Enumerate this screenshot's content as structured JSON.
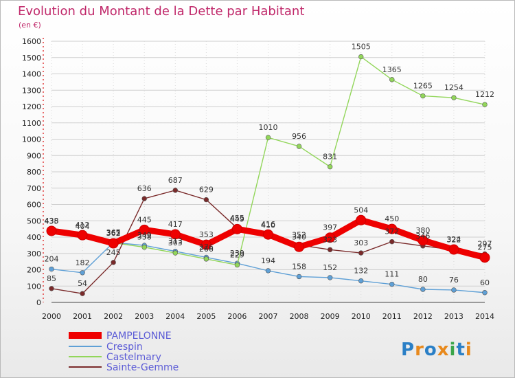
{
  "chart_data": {
    "type": "line",
    "title": "Evolution du Montant de la Dette par Habitant",
    "subtitle": "(en €)",
    "xlabel": "",
    "ylabel": "",
    "x": [
      "2000",
      "2001",
      "2002",
      "2003",
      "2004",
      "2005",
      "2006",
      "2007",
      "2008",
      "2009",
      "2010",
      "2011",
      "2012",
      "2013",
      "2014"
    ],
    "ylim": [
      0,
      1600
    ],
    "yticks": [
      "0",
      "100",
      "200",
      "300",
      "400",
      "500",
      "600",
      "700",
      "800",
      "900",
      "1000",
      "1100",
      "1200",
      "1300",
      "1400",
      "1500",
      "1600"
    ],
    "grid": true,
    "legend_position": "bottom-left",
    "series": [
      {
        "name": "PAMPELONNE",
        "color": "#ee0000",
        "values": [
          438,
          412,
          362,
          445,
          417,
          353,
          449,
          416,
          340,
          397,
          504,
          450,
          380,
          324,
          275
        ],
        "labels": [
          "438",
          "412",
          "362",
          "445",
          "417",
          "353",
          "449",
          "416",
          "340",
          "397",
          "504",
          "450",
          "380",
          "324",
          "275"
        ]
      },
      {
        "name": "Crespin",
        "color": "#5fa0d6",
        "values": [
          204,
          182,
          367,
          349,
          313,
          276,
          239,
          194,
          158,
          152,
          132,
          111,
          80,
          76,
          60
        ],
        "labels": [
          "204",
          "182",
          "367",
          "349",
          "313",
          "276",
          "239",
          "194",
          "158",
          "152",
          "132",
          "111",
          "80",
          "76",
          "60"
        ]
      },
      {
        "name": "Castelmary",
        "color": "#92d65a",
        "values": [
          435,
          404,
          365,
          338,
          303,
          266,
          229,
          1010,
          956,
          831,
          1505,
          1365,
          1265,
          1254,
          1212
        ],
        "labels": [
          "435",
          "404",
          "365",
          "338",
          "303",
          "266",
          "229",
          "1010",
          "956",
          "831",
          "1505",
          "1365",
          "1265",
          "1254",
          "1212"
        ]
      },
      {
        "name": "Sainte-Gemme",
        "color": "#7a2a2a",
        "values": [
          85,
          54,
          245,
          636,
          687,
          629,
          455,
          410,
          352,
          323,
          303,
          372,
          346,
          322,
          297
        ],
        "labels": [
          "85",
          "54",
          "245",
          "636",
          "687",
          "629",
          "455",
          "410",
          "352",
          "323",
          "303",
          "372",
          "346",
          "322",
          "297"
        ]
      }
    ]
  },
  "logo": {
    "text": "Proxiti"
  }
}
